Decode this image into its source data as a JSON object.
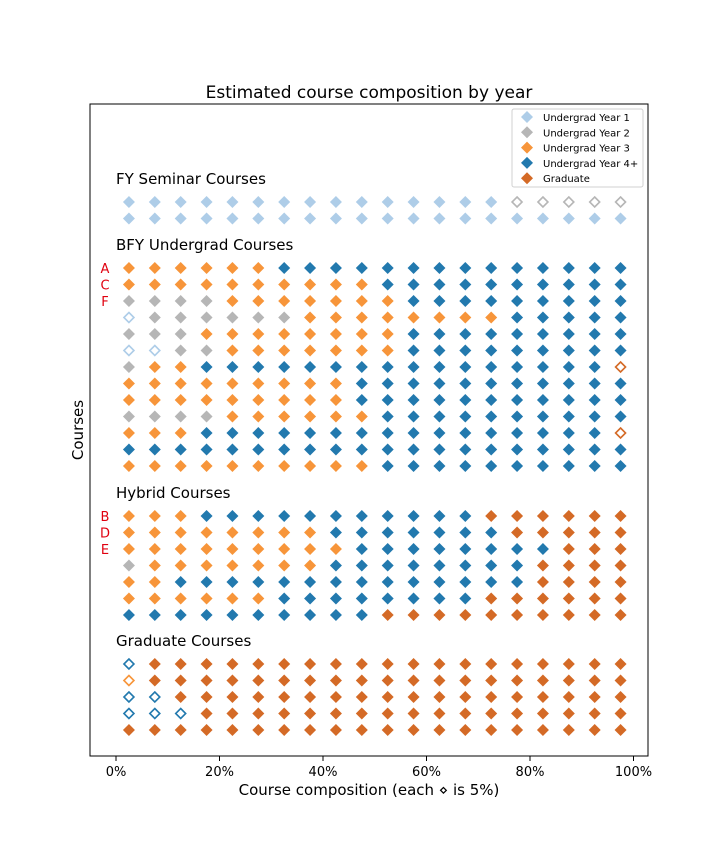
{
  "chart_data": {
    "type": "waffle",
    "title": "Estimated course composition by year",
    "xlabel": "Course composition (each ⋄ is 5%)",
    "ylabel": "Courses",
    "xticks": [
      "0%",
      "20%",
      "40%",
      "60%",
      "80%",
      "100%"
    ],
    "xlim": [
      -5,
      102
    ],
    "legend": [
      {
        "key": "Y1",
        "label": "Undergrad Year 1",
        "color": "#aecde8"
      },
      {
        "key": "Y2",
        "label": "Undergrad Year 2",
        "color": "#b6b6b6"
      },
      {
        "key": "Y3",
        "label": "Undergrad Year 3",
        "color": "#f7953a"
      },
      {
        "key": "Y4",
        "label": "Undergrad Year 4+",
        "color": "#2279ae"
      },
      {
        "key": "G",
        "label": "Graduate",
        "color": "#d46a26"
      }
    ],
    "legend_position": "top-right",
    "color_codes": {
      "1": "Y1",
      "2": "Y2",
      "3": "Y3",
      "4": "Y4",
      "5": "G"
    },
    "notes": "Each row is one course of 20 markers (5% each). Digits 1-5 map to year colors; a trailing 'o' marks a hollow (outline-only) marker.",
    "groups": [
      {
        "title": "FY Seminar Courses",
        "rows": [
          {
            "label": "",
            "cells": "1 1 1 1 1 1 1 1 1 1 1 1 1 1 1 2o 2o 2o 2o 2o"
          },
          {
            "label": "",
            "cells": "1 1 1 1 1 1 1 1 1 1 1 1 1 1 1 1 1 1 1 1"
          }
        ]
      },
      {
        "title": "BFY Undergrad Courses",
        "rows": [
          {
            "label": "A",
            "cells": "3 3 3 3 3 3 4 4 4 4 4 4 4 4 4 4 4 4 4 4"
          },
          {
            "label": "C",
            "cells": "3 3 3 3 3 3 3 3 3 3 4 4 4 4 4 4 4 4 4 4"
          },
          {
            "label": "F",
            "cells": "2 2 2 2 3 3 3 3 3 3 3 4 4 4 4 4 4 4 4 4"
          },
          {
            "label": "",
            "cells": "1o 2 2 2 2 2 2 3 3 3 3 3 3 3 3 4 4 4 4 4"
          },
          {
            "label": "",
            "cells": "2 2 2 3 3 3 3 3 3 3 3 4 4 4 4 4 4 4 4 4"
          },
          {
            "label": "",
            "cells": "1o 1o 2 2 3 3 3 3 3 3 3 4 4 4 4 4 4 4 4 4"
          },
          {
            "label": "",
            "cells": "2 3 3 4 4 4 4 4 4 4 4 4 4 4 4 4 4 4 4 5o"
          },
          {
            "label": "",
            "cells": "3 3 3 3 3 3 3 3 3 4 4 4 4 4 4 4 4 4 4 4"
          },
          {
            "label": "",
            "cells": "3 3 3 3 3 3 3 3 3 4 4 4 4 4 4 4 4 4 4 4"
          },
          {
            "label": "",
            "cells": "2 2 2 2 3 3 3 3 3 3 4 4 4 4 4 4 4 4 4 4"
          },
          {
            "label": "",
            "cells": "3 3 3 4 4 4 4 4 4 4 4 4 4 4 4 4 4 4 4 5o"
          },
          {
            "label": "",
            "cells": "4 4 4 4 4 4 4 4 4 4 4 4 4 4 4 4 4 4 4 4"
          },
          {
            "label": "",
            "cells": "3 3 3 3 3 3 3 3 3 3 4 4 4 4 4 4 4 4 4 4"
          }
        ]
      },
      {
        "title": "Hybrid Courses",
        "rows": [
          {
            "label": "B",
            "cells": "3 3 3 4 4 4 4 4 4 4 4 4 4 4 5 5 5 5 5 5"
          },
          {
            "label": "D",
            "cells": "3 3 3 3 3 3 3 3 4 4 4 4 4 4 4 5 5 5 5 5"
          },
          {
            "label": "E",
            "cells": "3 3 3 3 3 3 3 3 3 4 4 4 4 4 4 4 4 5 5 5"
          },
          {
            "label": "",
            "cells": "2 3 3 3 3 3 3 3 4 4 4 4 4 4 4 4 5 5 5 5"
          },
          {
            "label": "",
            "cells": "3 3 4 4 4 4 4 4 4 4 4 4 4 4 4 4 5 5 5 5"
          },
          {
            "label": "",
            "cells": "3 3 3 3 3 3 4 4 4 4 4 4 4 4 5 5 5 5 5 5"
          },
          {
            "label": "",
            "cells": "4 4 4 4 4 4 4 4 4 4 5 5 5 5 5 5 5 5 5 5"
          }
        ]
      },
      {
        "title": "Graduate Courses",
        "rows": [
          {
            "label": "",
            "cells": "4o 5 5 5 5 5 5 5 5 5 5 5 5 5 5 5 5 5 5 5"
          },
          {
            "label": "",
            "cells": "3o 5 5 5 5 5 5 5 5 5 5 5 5 5 5 5 5 5 5 5"
          },
          {
            "label": "",
            "cells": "4o 4o 5 5 5 5 5 5 5 5 5 5 5 5 5 5 5 5 5 5"
          },
          {
            "label": "",
            "cells": "4o 4o 4o 5 5 5 5 5 5 5 5 5 5 5 5 5 5 5 5 5"
          },
          {
            "label": "",
            "cells": "5 5 5 5 5 5 5 5 5 5 5 5 5 5 5 5 5 5 5 5"
          }
        ]
      }
    ]
  }
}
